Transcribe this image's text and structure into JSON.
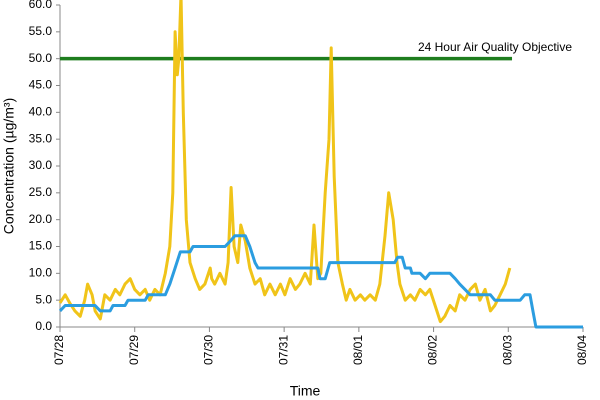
{
  "chart_data": {
    "type": "line",
    "x_label": "Time",
    "y_label": "Concentration (µg/m³)",
    "xlim": [
      0,
      7
    ],
    "xticks": [
      {
        "value": 0,
        "label": "07/28"
      },
      {
        "value": 1,
        "label": "07/29"
      },
      {
        "value": 2,
        "label": "07/30"
      },
      {
        "value": 3,
        "label": "07/31"
      },
      {
        "value": 4,
        "label": "08/01"
      },
      {
        "value": 5,
        "label": "08/02"
      },
      {
        "value": 6,
        "label": "08/03"
      },
      {
        "value": 7,
        "label": "08/04"
      }
    ],
    "ylim": [
      0,
      60
    ],
    "yticks": [
      {
        "value": 0,
        "label": "0.0"
      },
      {
        "value": 5,
        "label": "5.0"
      },
      {
        "value": 10,
        "label": "10.0"
      },
      {
        "value": 15,
        "label": "15.0"
      },
      {
        "value": 20,
        "label": "20.0"
      },
      {
        "value": 25,
        "label": "25.0"
      },
      {
        "value": 30,
        "label": "30.0"
      },
      {
        "value": 35,
        "label": "35.0"
      },
      {
        "value": 40,
        "label": "40.0"
      },
      {
        "value": 45,
        "label": "45.0"
      },
      {
        "value": 50,
        "label": "50.0"
      },
      {
        "value": 55,
        "label": "55.0"
      },
      {
        "value": 60,
        "label": "60.0"
      }
    ],
    "grid": false,
    "series": [
      {
        "color": "#f0c419",
        "x": [
          0,
          0.07,
          0.13,
          0.2,
          0.27,
          0.33,
          0.37,
          0.43,
          0.47,
          0.54,
          0.6,
          0.67,
          0.74,
          0.8,
          0.87,
          0.94,
          1.0,
          1.07,
          1.14,
          1.2,
          1.27,
          1.34,
          1.41,
          1.47,
          1.51,
          1.54,
          1.57,
          1.59,
          1.62,
          1.65,
          1.69,
          1.74,
          1.81,
          1.87,
          1.94,
          2.01,
          2.03,
          2.07,
          2.14,
          2.21,
          2.25,
          2.29,
          2.33,
          2.38,
          2.42,
          2.48,
          2.54,
          2.61,
          2.68,
          2.74,
          2.81,
          2.88,
          2.95,
          3.01,
          3.08,
          3.15,
          3.21,
          3.28,
          3.35,
          3.4,
          3.45,
          3.49,
          3.55,
          3.6,
          3.63,
          3.67,
          3.72,
          3.78,
          3.83,
          3.88,
          3.95,
          4.02,
          4.08,
          4.15,
          4.22,
          4.28,
          4.35,
          4.4,
          4.46,
          4.51,
          4.55,
          4.62,
          4.69,
          4.75,
          4.82,
          4.89,
          4.95,
          5.02,
          5.09,
          5.15,
          5.22,
          5.29,
          5.35,
          5.42,
          5.49,
          5.56,
          5.62,
          5.69,
          5.76,
          5.82,
          5.89,
          5.96,
          6.02
        ],
        "values": [
          4.5,
          6,
          4.5,
          3,
          2,
          5,
          8,
          6,
          3,
          1.5,
          6,
          5,
          7,
          6,
          8,
          9,
          7,
          6,
          7,
          5,
          7,
          6,
          10,
          15,
          25,
          55,
          47,
          50,
          62,
          40,
          20,
          12,
          9,
          7,
          8,
          11,
          9,
          8,
          10,
          8,
          12,
          26,
          15,
          12,
          19,
          16,
          11,
          8,
          9,
          6,
          8,
          6,
          8,
          6,
          9,
          7,
          8,
          10,
          8,
          19,
          9,
          10,
          25,
          35,
          52,
          28,
          12,
          8,
          5,
          7,
          5,
          6,
          5,
          6,
          5,
          8,
          17,
          25,
          20,
          12,
          8,
          5,
          6,
          5,
          7,
          6,
          7,
          4,
          1,
          2,
          4,
          3,
          6,
          5,
          7,
          8,
          5,
          7,
          3,
          4,
          6,
          8,
          11
        ]
      },
      {
        "color": "#2b9de0",
        "x": [
          0,
          0.07,
          0.47,
          0.54,
          0.67,
          0.71,
          0.87,
          0.91,
          1.14,
          1.18,
          1.41,
          1.47,
          1.54,
          1.61,
          1.74,
          1.78,
          2.21,
          2.28,
          2.34,
          2.48,
          2.54,
          2.61,
          2.65,
          3.21,
          3.45,
          3.48,
          3.55,
          3.61,
          4.48,
          4.52,
          4.58,
          4.62,
          4.69,
          4.71,
          4.82,
          4.89,
          4.95,
          5.22,
          5.29,
          5.35,
          5.42,
          5.49,
          5.76,
          5.82,
          6.16,
          6.22,
          6.29,
          6.33,
          6.37,
          7.0
        ],
        "values": [
          3,
          4,
          4,
          3,
          3,
          4,
          4,
          5,
          5,
          6,
          6,
          8,
          11,
          14,
          14,
          15,
          15,
          16,
          17,
          17,
          15,
          12,
          11,
          11,
          11,
          9,
          9,
          12,
          12,
          13,
          13,
          11,
          11,
          10,
          10,
          9,
          10,
          10,
          9,
          8,
          7,
          6,
          6,
          5,
          5,
          6,
          6,
          3,
          0,
          0
        ]
      }
    ],
    "reference_line": {
      "value": 50,
      "x": [
        0,
        6.05
      ],
      "label": "24 Hour Air Quality Objective",
      "color": "#1e7d1e"
    }
  }
}
